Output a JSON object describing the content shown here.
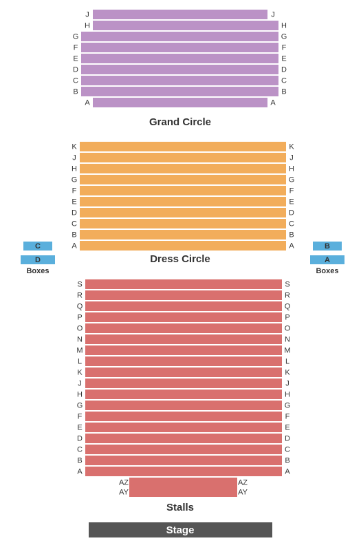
{
  "grand_circle": {
    "name": "Grand Circle",
    "rows": [
      "J",
      "H",
      "G",
      "F",
      "E",
      "D",
      "C",
      "B",
      "A"
    ]
  },
  "dress_circle": {
    "name": "Dress Circle",
    "rows": [
      "K",
      "J",
      "H",
      "G",
      "F",
      "E",
      "D",
      "C",
      "B",
      "A"
    ]
  },
  "stalls": {
    "name": "Stalls",
    "rows": [
      "S",
      "R",
      "Q",
      "P",
      "O",
      "N",
      "M",
      "L",
      "K",
      "J",
      "H",
      "G",
      "F",
      "E",
      "D",
      "C",
      "B",
      "A"
    ],
    "front_rows": [
      "AZ",
      "AY"
    ]
  },
  "boxes": {
    "name": "Boxes",
    "left": [
      "C",
      "D"
    ],
    "right": [
      "B",
      "A"
    ]
  },
  "stage": "Stage"
}
